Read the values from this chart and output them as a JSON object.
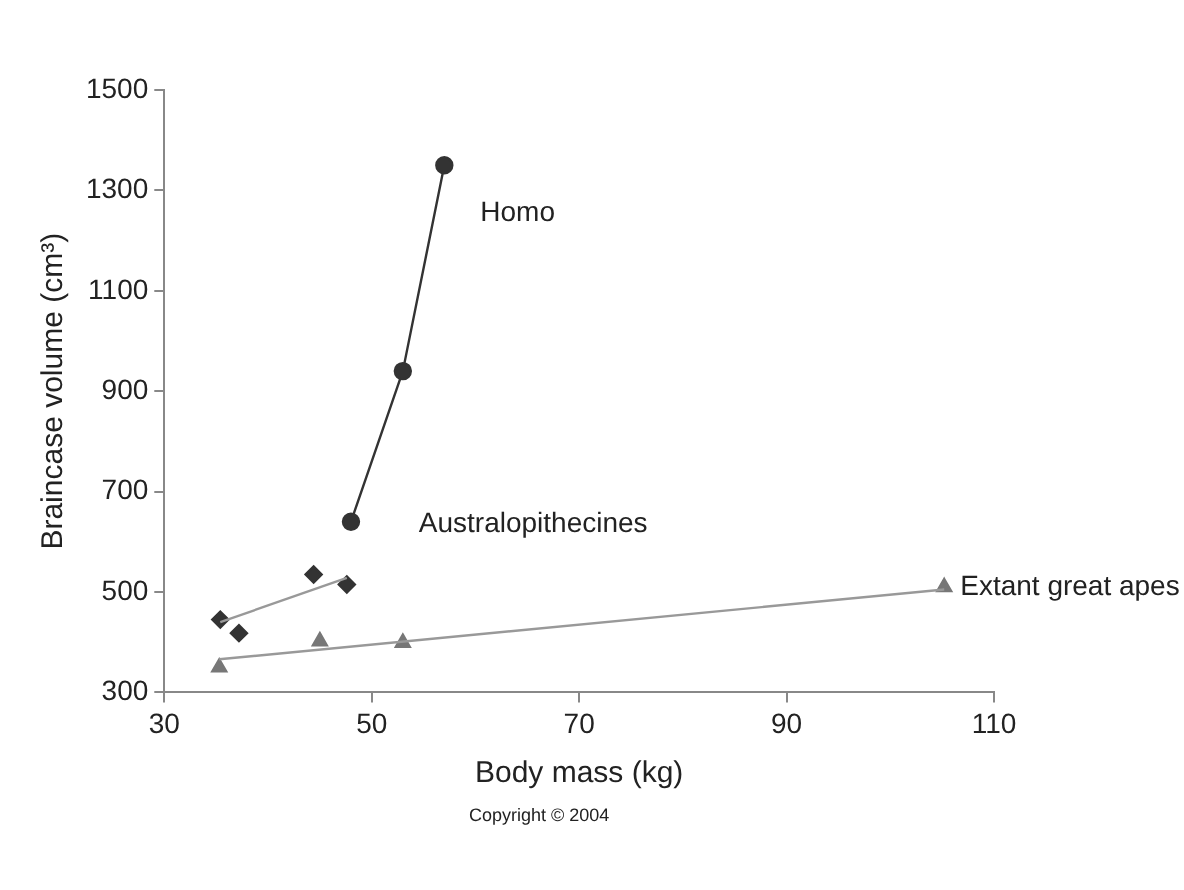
{
  "chart_data": {
    "type": "scatter",
    "xlabel": "Body mass (kg)",
    "ylabel": "Braincase volume (cm³)",
    "xlim": [
      30,
      110
    ],
    "xticks": [
      30,
      50,
      70,
      90,
      110
    ],
    "ylim": [
      300,
      1500
    ],
    "yticks": [
      300,
      500,
      700,
      900,
      1100,
      1300,
      1500
    ],
    "grid": false,
    "series": [
      {
        "type": "line",
        "name": "Homo",
        "marker": "circle",
        "color": "#333333",
        "x": [
          48,
          53,
          57
        ],
        "values": [
          640,
          940,
          1350
        ]
      },
      {
        "name": "Australopithecines",
        "marker": "diamond",
        "color": "#333333",
        "x": [
          35.4,
          37.2,
          44.4,
          47.6
        ],
        "values": [
          445,
          418,
          535,
          515
        ]
      },
      {
        "type": "line",
        "marker": "none",
        "color": "#999999",
        "x": [
          35.4,
          47.6
        ],
        "values": [
          440,
          528
        ]
      },
      {
        "name": "Extant great apes",
        "marker": "triangle",
        "color": "#777777",
        "x": [
          35.3,
          45,
          53,
          105.2
        ],
        "values": [
          350,
          402,
          399,
          510
        ]
      },
      {
        "type": "line",
        "marker": "none",
        "color": "#999999",
        "x": [
          35.3,
          105.2
        ],
        "values": [
          366,
          505
        ]
      }
    ],
    "annotations": [
      "Copyright © 2004"
    ]
  }
}
